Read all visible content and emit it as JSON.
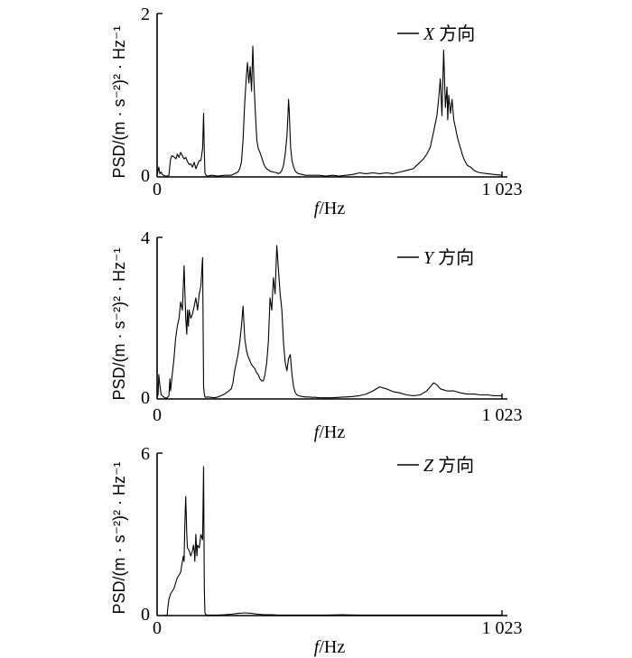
{
  "chart_data": [
    {
      "type": "line",
      "xlabel_italic": "f",
      "xlabel_rest": "/Hz",
      "ylabel": "PSD/(m · s⁻²)² · Hz⁻¹",
      "xlim": [
        0,
        1023
      ],
      "ylim": [
        0,
        2
      ],
      "x_tick_labels": [
        "0",
        "1 023"
      ],
      "y_tick_labels": [
        "0",
        "2"
      ],
      "legend_italic": "X",
      "legend_rest": " 方向",
      "legend_position": "top-right",
      "grid": false,
      "series": [
        {
          "x": [
            0,
            5,
            8,
            12,
            15,
            20,
            25,
            30,
            35,
            40,
            44,
            48,
            52,
            56,
            60,
            65,
            70,
            75,
            80,
            85,
            90,
            95,
            100,
            105,
            110,
            115,
            120,
            125,
            130,
            135,
            138,
            140,
            142,
            145,
            150,
            160,
            180,
            200,
            220,
            230,
            240,
            245,
            250,
            255,
            260,
            265,
            268,
            272,
            276,
            280,
            284,
            288,
            292,
            296,
            300,
            305,
            310,
            318,
            325,
            335,
            345,
            355,
            360,
            365,
            370,
            375,
            380,
            385,
            388,
            390,
            392,
            394,
            396,
            400,
            405,
            410,
            415,
            420,
            430,
            440,
            460,
            480,
            500,
            520,
            540,
            560,
            580,
            600,
            620,
            640,
            660,
            680,
            700,
            720,
            740,
            760,
            770,
            780,
            790,
            800,
            810,
            820,
            830,
            835,
            840,
            845,
            850,
            855,
            860,
            862,
            865,
            870,
            875,
            880,
            885,
            890,
            895,
            900,
            905,
            910,
            915,
            920,
            930,
            940,
            950,
            960,
            980,
            1000,
            1023
          ],
          "values": [
            0.02,
            0.12,
            0.04,
            0.06,
            0.03,
            0.02,
            0.01,
            0.01,
            0.02,
            0.22,
            0.26,
            0.25,
            0.24,
            0.22,
            0.28,
            0.24,
            0.3,
            0.26,
            0.22,
            0.24,
            0.19,
            0.15,
            0.16,
            0.12,
            0.18,
            0.1,
            0.15,
            0.2,
            0.2,
            0.35,
            0.78,
            0.3,
            0.05,
            0.02,
            0.01,
            0.02,
            0.01,
            0.02,
            0.02,
            0.04,
            0.06,
            0.1,
            0.18,
            0.45,
            0.92,
            1.25,
            1.4,
            1.15,
            1.35,
            1.05,
            1.6,
            1.1,
            0.75,
            0.45,
            0.35,
            0.3,
            0.24,
            0.14,
            0.1,
            0.07,
            0.06,
            0.05,
            0.04,
            0.05,
            0.08,
            0.14,
            0.28,
            0.5,
            0.75,
            0.95,
            0.8,
            0.58,
            0.36,
            0.2,
            0.12,
            0.07,
            0.05,
            0.04,
            0.03,
            0.02,
            0.02,
            0.02,
            0.01,
            0.02,
            0.01,
            0.02,
            0.03,
            0.05,
            0.04,
            0.05,
            0.04,
            0.05,
            0.04,
            0.06,
            0.08,
            0.1,
            0.14,
            0.18,
            0.22,
            0.28,
            0.36,
            0.55,
            0.75,
            0.95,
            1.2,
            0.75,
            1.55,
            0.85,
            1.1,
            0.7,
            1.0,
            0.78,
            0.95,
            0.7,
            0.6,
            0.5,
            0.42,
            0.35,
            0.28,
            0.22,
            0.18,
            0.14,
            0.12,
            0.08,
            0.06,
            0.05,
            0.04,
            0.03,
            0.02
          ]
        }
      ]
    },
    {
      "type": "line",
      "xlabel_italic": "f",
      "xlabel_rest": "/Hz",
      "ylabel": "PSD/(m · s⁻²)² · Hz⁻¹",
      "xlim": [
        0,
        1023
      ],
      "ylim": [
        0,
        4
      ],
      "x_tick_labels": [
        "0",
        "1 023"
      ],
      "y_tick_labels": [
        "0",
        "4"
      ],
      "legend_italic": "Y",
      "legend_rest": " 方向",
      "legend_position": "top-right",
      "grid": false,
      "series": [
        {
          "x": [
            0,
            3,
            5,
            8,
            12,
            15,
            20,
            25,
            30,
            35,
            38,
            40,
            45,
            50,
            55,
            60,
            65,
            70,
            75,
            80,
            85,
            88,
            90,
            93,
            95,
            100,
            105,
            110,
            115,
            120,
            125,
            130,
            135,
            138,
            140,
            142,
            145,
            150,
            160,
            170,
            180,
            190,
            200,
            210,
            220,
            225,
            230,
            235,
            240,
            245,
            250,
            255,
            260,
            265,
            270,
            275,
            280,
            285,
            290,
            295,
            300,
            305,
            310,
            315,
            320,
            325,
            330,
            335,
            340,
            345,
            350,
            355,
            360,
            365,
            370,
            375,
            380,
            385,
            390,
            395,
            400,
            405,
            410,
            415,
            420,
            430,
            440,
            450,
            460,
            470,
            480,
            500,
            520,
            540,
            560,
            580,
            600,
            620,
            640,
            660,
            680,
            700,
            720,
            740,
            760,
            780,
            790,
            800,
            810,
            820,
            830,
            840,
            860,
            880,
            900,
            920,
            940,
            960,
            980,
            1000,
            1023
          ],
          "values": [
            0.05,
            0.1,
            0.6,
            0.35,
            0.1,
            0.08,
            0.05,
            0.02,
            0.03,
            0.08,
            0.5,
            0.2,
            0.6,
            1.0,
            1.5,
            1.8,
            2.0,
            2.4,
            2.2,
            3.3,
            2.0,
            1.6,
            2.2,
            1.8,
            2.2,
            2.0,
            2.1,
            2.3,
            2.5,
            2.2,
            2.6,
            2.8,
            3.5,
            0.3,
            0.12,
            0.05,
            0.04,
            0.05,
            0.04,
            0.03,
            0.05,
            0.08,
            0.12,
            0.18,
            0.25,
            0.4,
            0.7,
            0.9,
            1.1,
            1.4,
            1.8,
            2.3,
            1.5,
            1.2,
            1.05,
            0.95,
            0.85,
            0.8,
            0.75,
            0.65,
            0.6,
            0.5,
            0.45,
            0.45,
            0.6,
            0.9,
            1.4,
            2.5,
            2.2,
            3.0,
            2.6,
            3.8,
            3.2,
            2.6,
            2.2,
            1.4,
            0.9,
            0.7,
            1.0,
            1.1,
            0.6,
            0.3,
            0.15,
            0.1,
            0.08,
            0.06,
            0.05,
            0.05,
            0.04,
            0.04,
            0.03,
            0.03,
            0.03,
            0.04,
            0.05,
            0.06,
            0.08,
            0.12,
            0.2,
            0.3,
            0.25,
            0.18,
            0.15,
            0.1,
            0.08,
            0.1,
            0.15,
            0.2,
            0.3,
            0.4,
            0.35,
            0.25,
            0.2,
            0.2,
            0.15,
            0.12,
            0.12,
            0.1,
            0.1,
            0.08,
            0.08
          ]
        }
      ]
    },
    {
      "type": "line",
      "xlabel_italic": "f",
      "xlabel_rest": "/Hz",
      "ylabel": "PSD/(m · s⁻²)² · Hz⁻¹",
      "xlim": [
        0,
        1023
      ],
      "ylim": [
        0,
        6
      ],
      "x_tick_labels": [
        "0",
        "1 023"
      ],
      "y_tick_labels": [
        "0",
        "6"
      ],
      "legend_italic": "Z",
      "legend_rest": " 方向",
      "legend_position": "top-right",
      "grid": false,
      "series": [
        {
          "x": [
            0,
            10,
            20,
            30,
            32,
            35,
            40,
            45,
            50,
            55,
            60,
            65,
            70,
            75,
            78,
            80,
            82,
            85,
            88,
            90,
            95,
            100,
            105,
            108,
            110,
            112,
            115,
            118,
            120,
            125,
            130,
            135,
            138,
            140,
            142,
            145,
            150,
            180,
            200,
            220,
            240,
            260,
            280,
            300,
            320,
            340,
            360,
            400,
            450,
            500,
            550,
            600,
            650,
            700,
            750,
            800,
            850,
            900,
            950,
            1000,
            1023
          ],
          "values": [
            0,
            0,
            0,
            0.02,
            0.3,
            0.6,
            0.8,
            0.9,
            1.0,
            1.2,
            1.4,
            1.5,
            1.6,
            2.0,
            2.2,
            2.0,
            3.2,
            4.4,
            3.0,
            2.5,
            2.4,
            2.2,
            2.4,
            2.6,
            2.4,
            2.0,
            3.0,
            2.2,
            2.6,
            2.5,
            3.0,
            2.8,
            5.5,
            1.0,
            0.1,
            0.03,
            0.02,
            0.02,
            0.03,
            0.05,
            0.08,
            0.1,
            0.08,
            0.05,
            0.03,
            0.03,
            0.02,
            0.02,
            0.02,
            0.02,
            0.03,
            0.02,
            0.02,
            0.02,
            0.02,
            0.02,
            0.02,
            0.02,
            0.02,
            0.02,
            0.02
          ]
        }
      ]
    }
  ]
}
